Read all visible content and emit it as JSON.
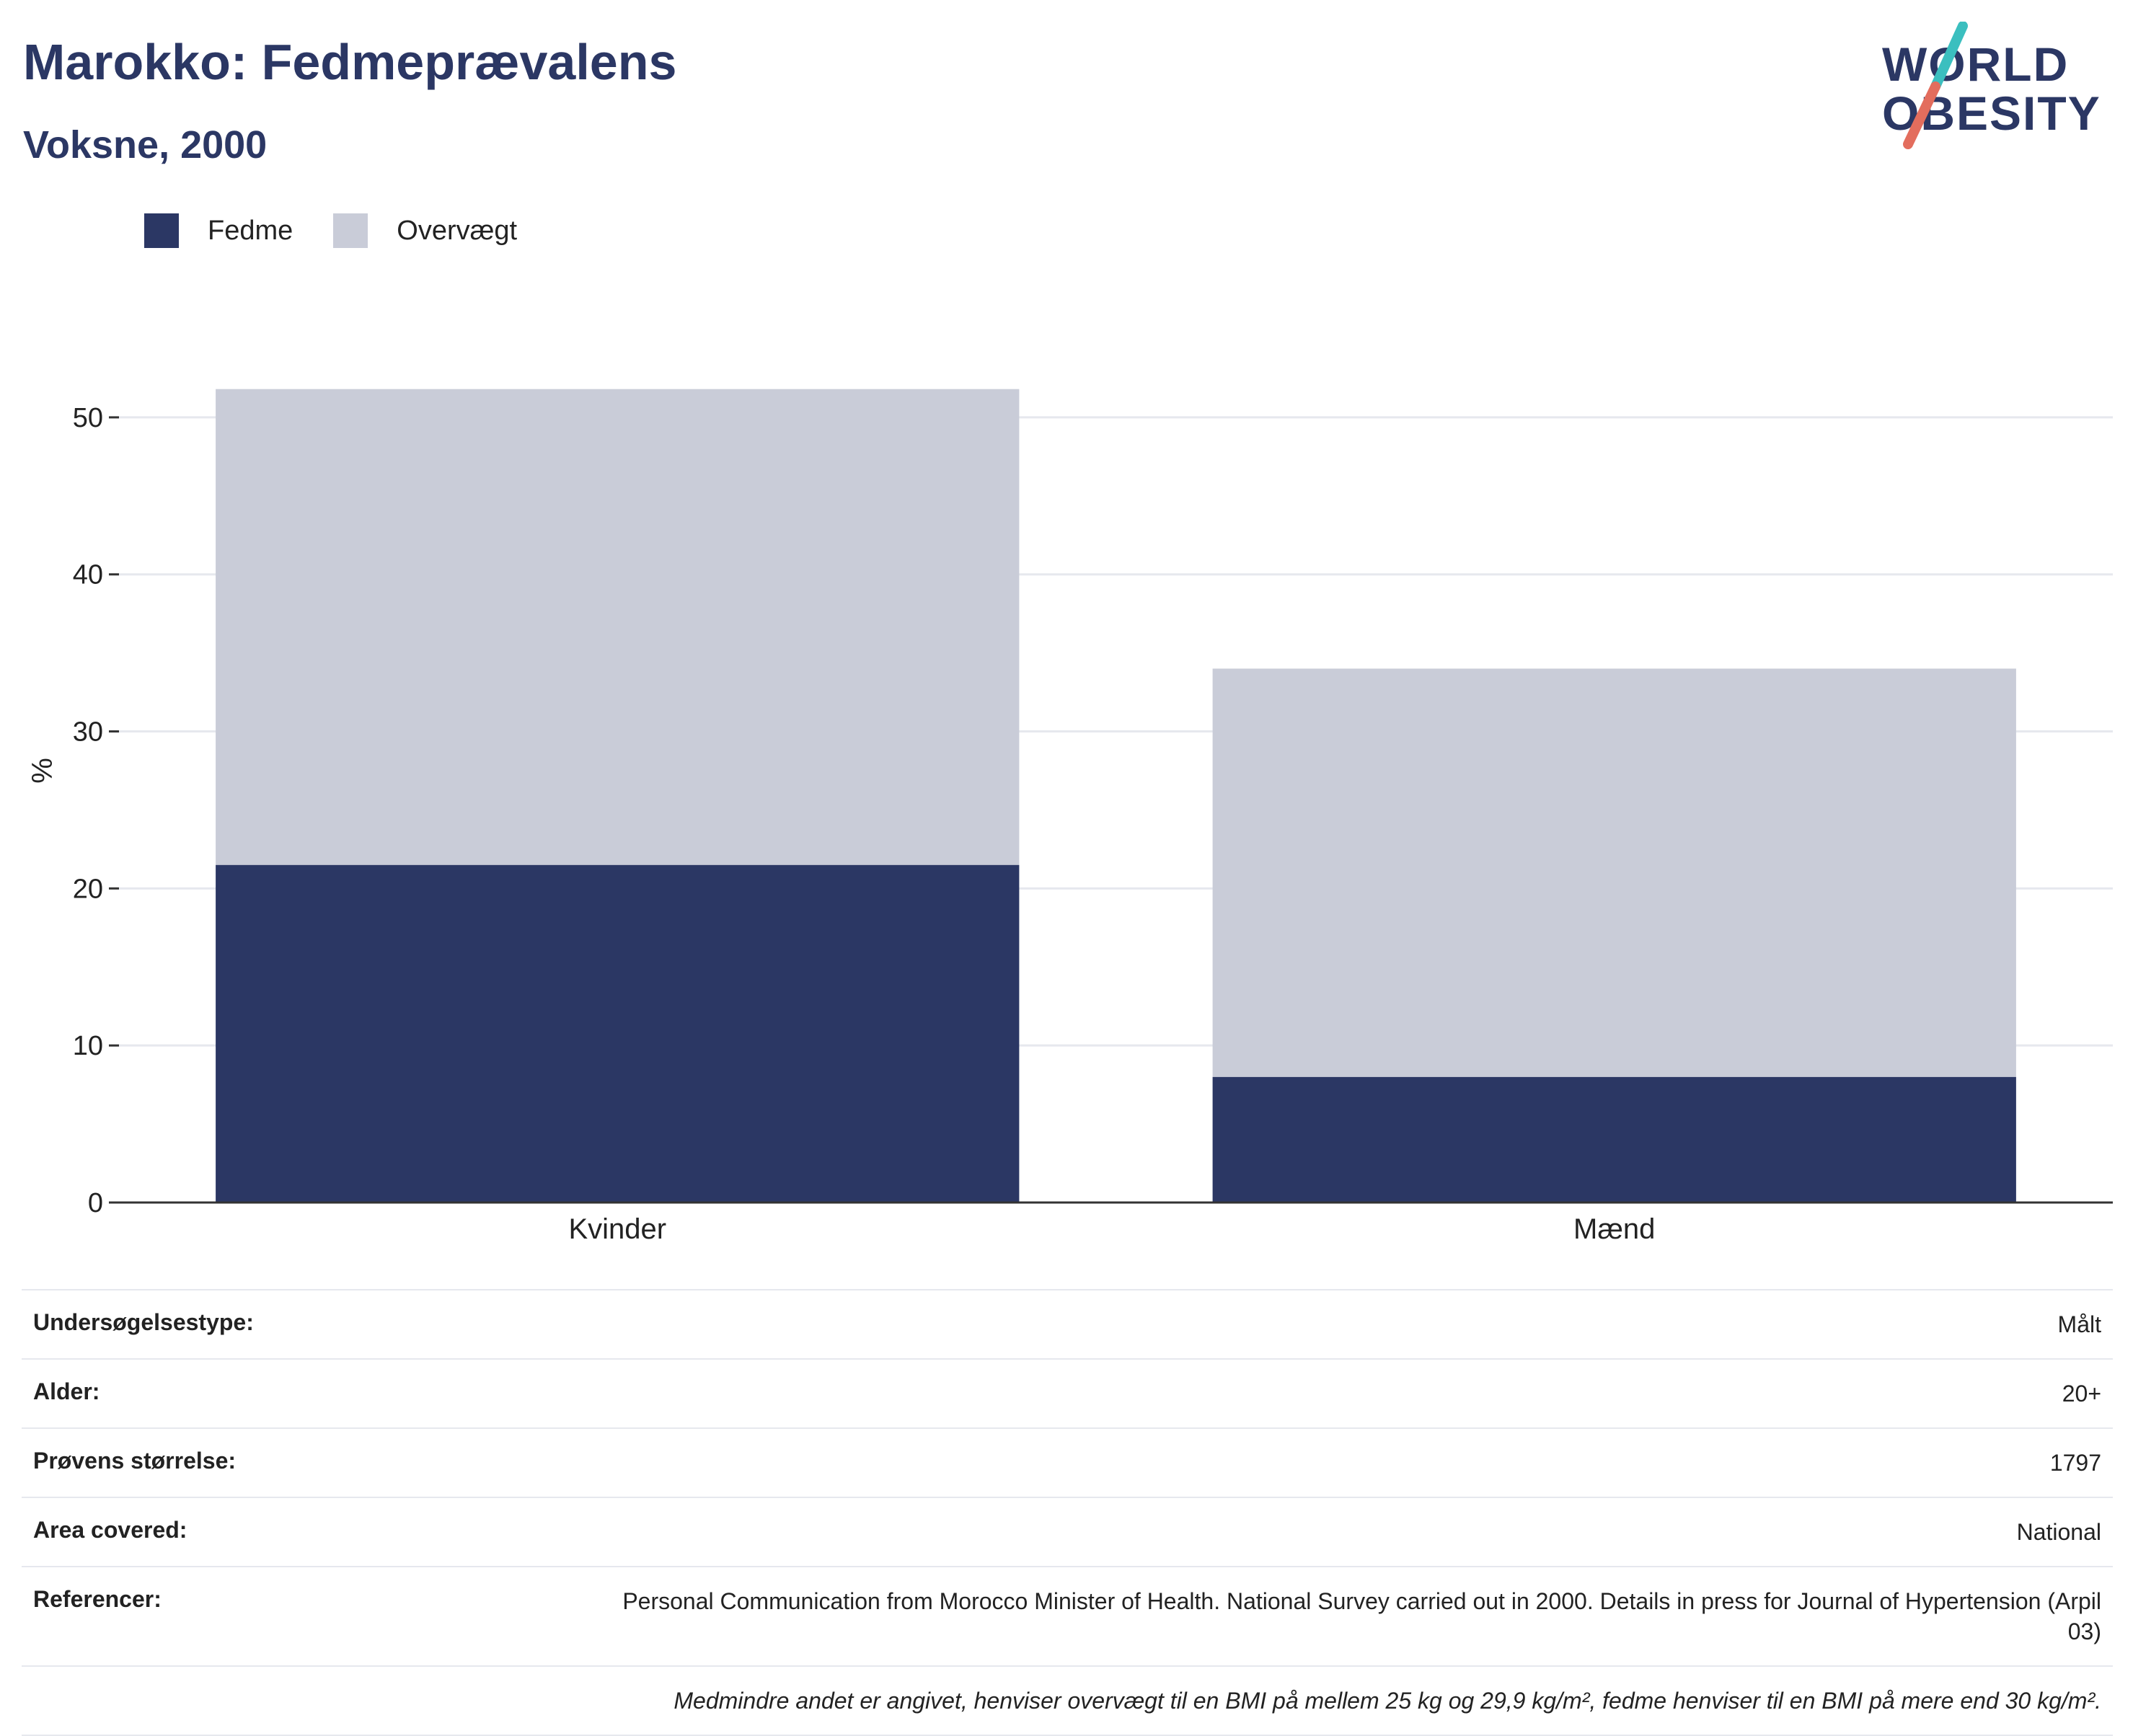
{
  "header": {
    "title": "Marokko: Fedmeprævalens",
    "subtitle": "Voksne, 2000"
  },
  "logo": {
    "line1": "WORLD",
    "line2": "OBESITY"
  },
  "legend": [
    {
      "label": "Fedme",
      "color": "#2b3764"
    },
    {
      "label": "Overvægt",
      "color": "#c9ccd8"
    }
  ],
  "chart_data": {
    "type": "bar",
    "stacked": true,
    "categories": [
      "Kvinder",
      "Mænd"
    ],
    "series": [
      {
        "name": "Fedme",
        "values": [
          21.5,
          8.0
        ],
        "color": "#2b3764"
      },
      {
        "name": "Overvægt",
        "values": [
          30.3,
          26.0
        ],
        "color": "#c9ccd8"
      }
    ],
    "ylabel": "%",
    "ylim": [
      0,
      55
    ],
    "yticks": [
      0,
      10,
      20,
      30,
      40,
      50
    ],
    "grid": true,
    "legend_position": "top-left"
  },
  "info": {
    "rows": [
      {
        "key": "Undersøgelsestype:",
        "value": "Målt"
      },
      {
        "key": "Alder:",
        "value": "20+"
      },
      {
        "key": "Prøvens størrelse:",
        "value": "1797"
      },
      {
        "key": "Area covered:",
        "value": "National"
      },
      {
        "key": "Referencer:",
        "value": "Personal Communication from Morocco Minister of Health. National Survey carried out in 2000. Details in press for Journal of Hypertension (Arpil 03)"
      }
    ],
    "note": "Medmindre andet er angivet, henviser overvægt til en BMI på mellem 25 kg og 29,9 kg/m², fedme henviser til en BMI på mere end 30 kg/m²."
  }
}
